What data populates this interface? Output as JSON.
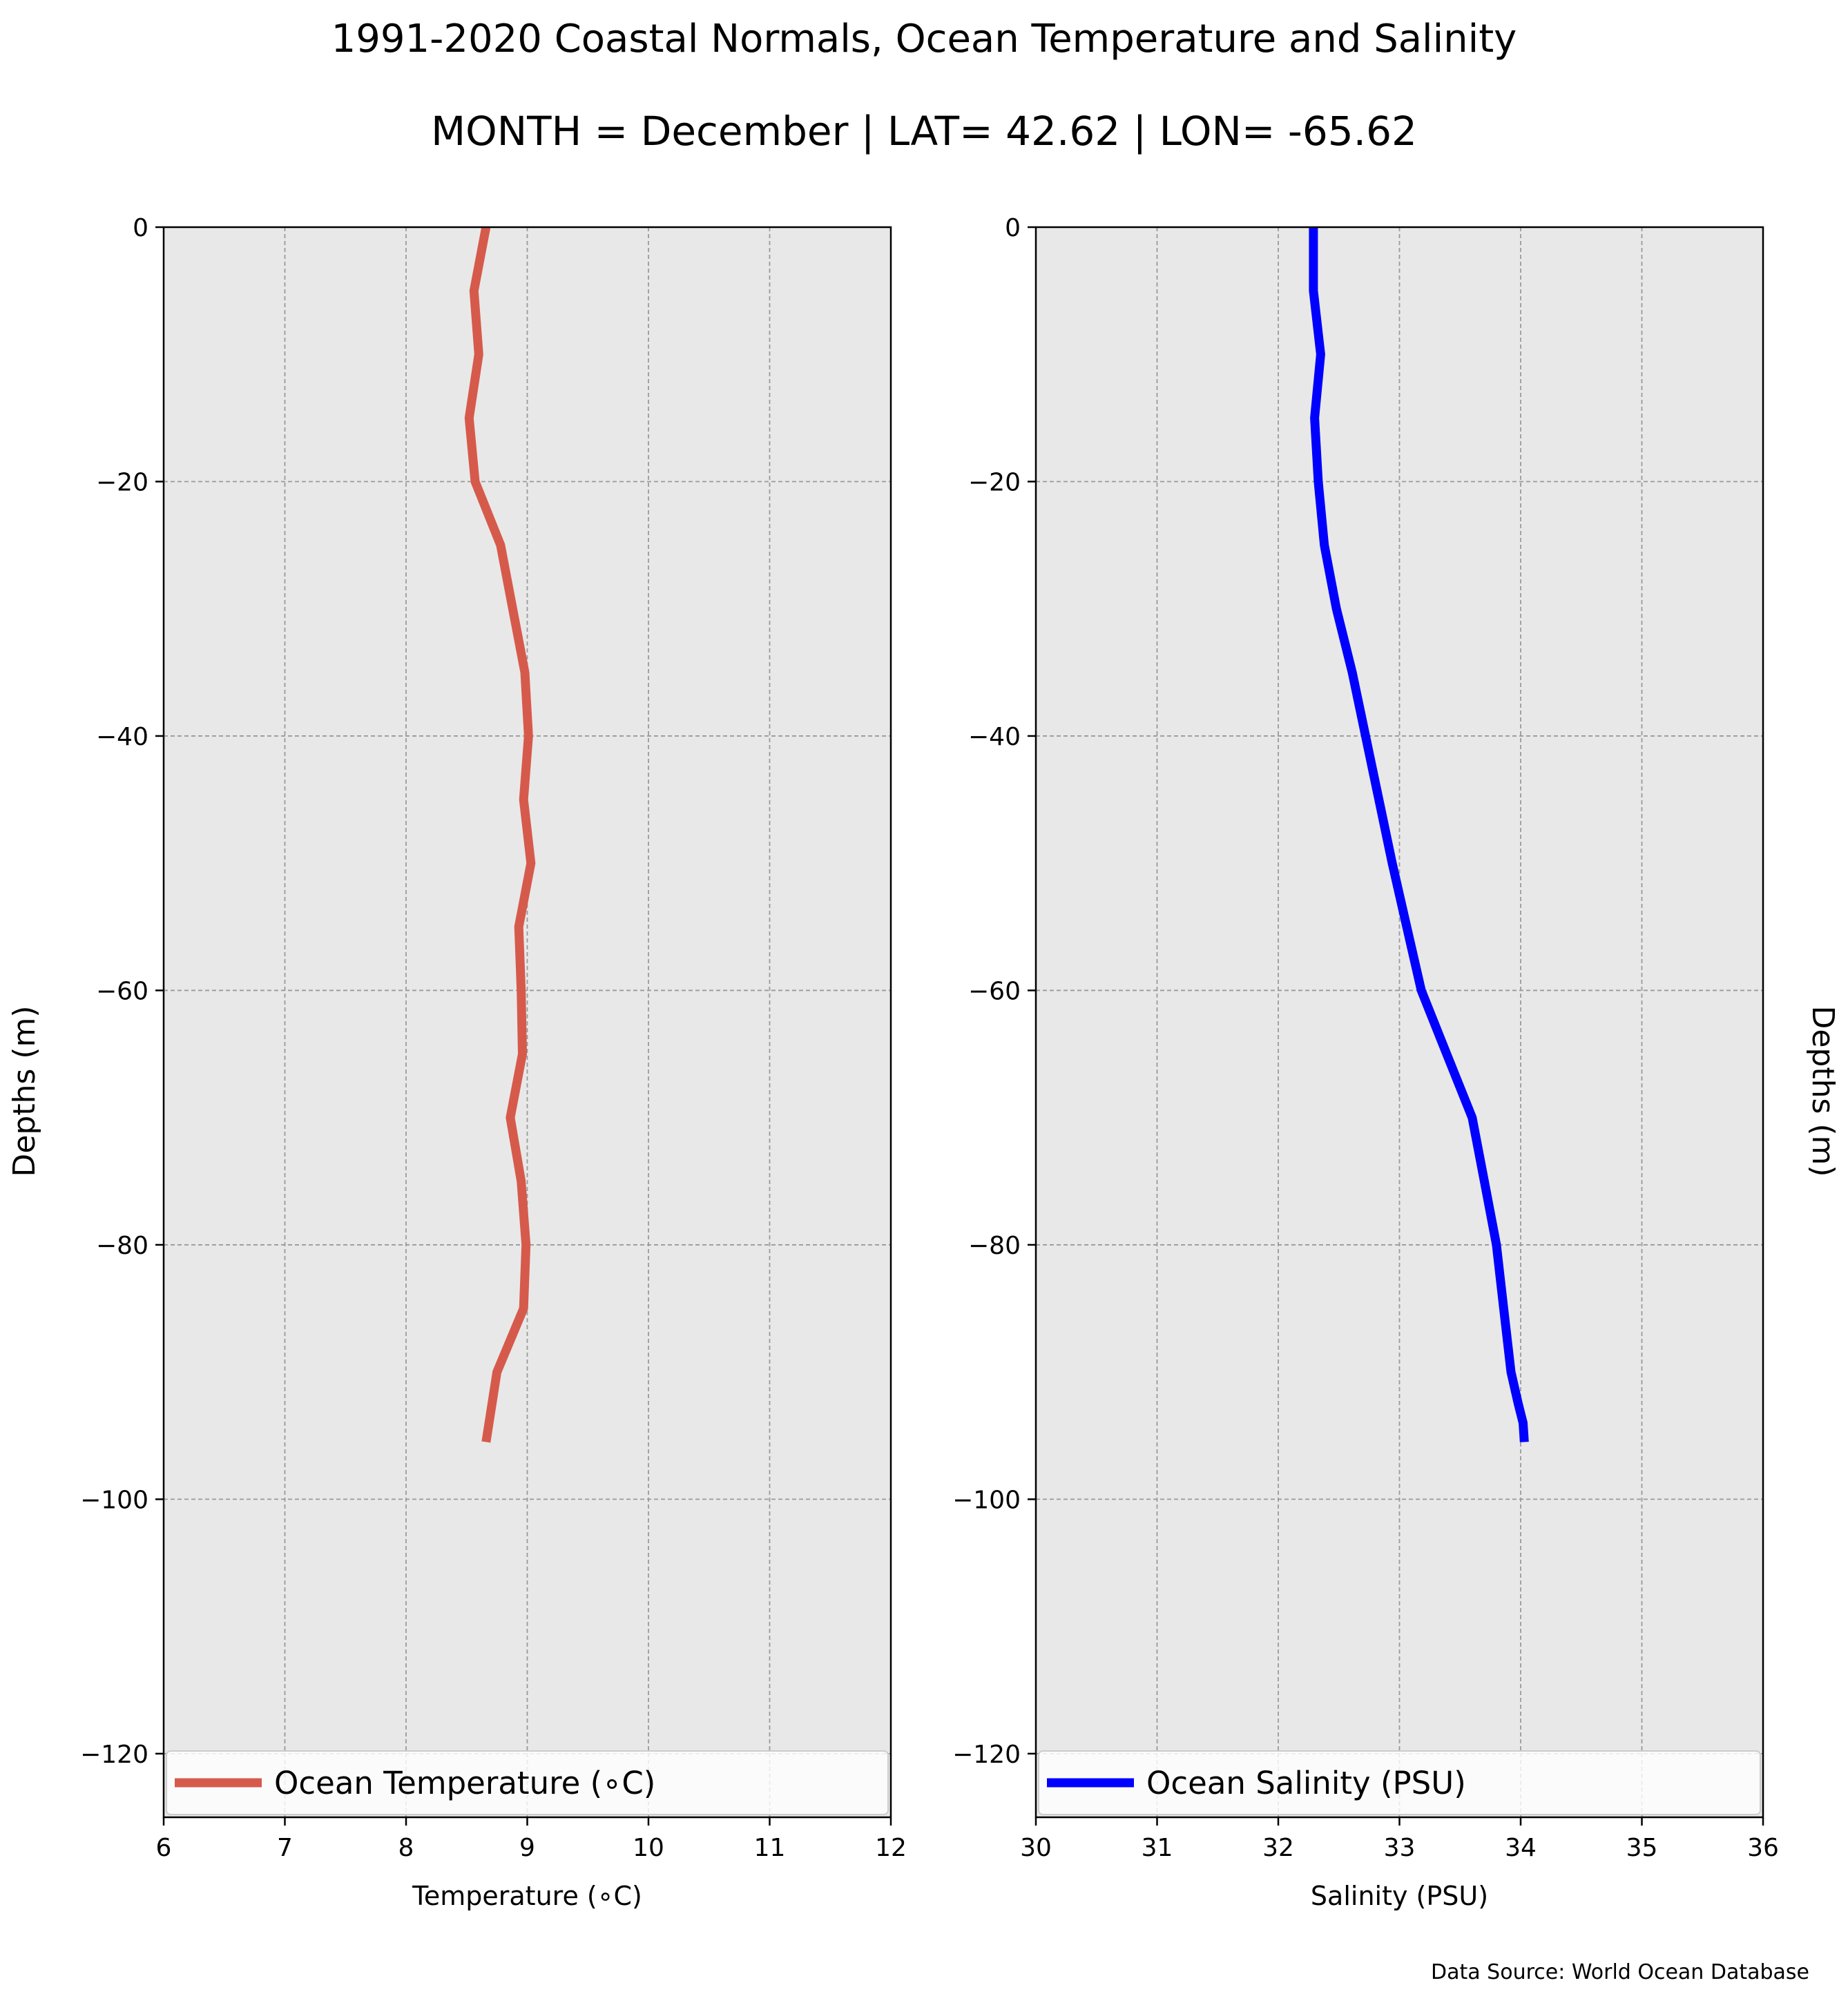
{
  "title": "1991-2020 Coastal Normals, Ocean Temperature and Salinity",
  "subtitle": "MONTH = December | LAT= 42.62 | LON= -65.62",
  "source_note": "Data Source: World Ocean Database",
  "colors": {
    "temperature": "#d65a4b",
    "salinity": "#0000ff",
    "plot_background": "#e8e8e8",
    "grid": "#9a9a9a"
  },
  "chart_data": [
    {
      "type": "line",
      "title": "",
      "xlabel": "Temperature ($^\\circ$C)",
      "xlabel_display": "Temperature (∘C)",
      "ylabel": "Depths (m)",
      "ylabel_side": "left",
      "xlim": [
        6,
        12
      ],
      "ylim": [
        -125,
        0
      ],
      "xticks": [
        "6",
        "7",
        "8",
        "9",
        "10",
        "11",
        "12"
      ],
      "yticks": [
        "0",
        "−20",
        "−40",
        "−60",
        "−80",
        "−100",
        "−120"
      ],
      "grid": true,
      "legend_placement": "lower-center",
      "series": [
        {
          "name": "Ocean Temperature ($^\\circ$C)",
          "name_display": "Ocean Temperature (∘C)",
          "color": "#d65a4b",
          "x": [
            8.66,
            8.56,
            8.6,
            8.52,
            8.57,
            8.78,
            8.88,
            8.98,
            9.01,
            8.97,
            9.03,
            8.93,
            8.95,
            8.96,
            8.86,
            8.95,
            8.99,
            8.97,
            8.75,
            8.66
          ],
          "y": [
            0,
            -5,
            -10,
            -15,
            -20,
            -25,
            -30,
            -35,
            -40,
            -45,
            -50,
            -55,
            -60,
            -65,
            -70,
            -75,
            -80,
            -85,
            -90,
            -95.5
          ]
        }
      ]
    },
    {
      "type": "line",
      "title": "",
      "xlabel": "Salinity (PSU)",
      "ylabel": "Depths (m)",
      "ylabel_side": "right",
      "xlim": [
        30,
        36
      ],
      "ylim": [
        -125,
        0
      ],
      "xticks": [
        "30",
        "31",
        "32",
        "33",
        "34",
        "35",
        "36"
      ],
      "yticks": [
        "0",
        "−20",
        "−40",
        "−60",
        "−80",
        "−100",
        "−120"
      ],
      "grid": true,
      "legend_placement": "lower-center",
      "series": [
        {
          "name": "Ocean Salinity (PSU)",
          "color": "#0000ff",
          "x": [
            32.29,
            32.29,
            32.35,
            32.3,
            32.33,
            32.38,
            32.48,
            32.61,
            32.72,
            32.83,
            32.94,
            33.06,
            33.18,
            33.39,
            33.6,
            33.7,
            33.8,
            33.86,
            33.92,
            33.98,
            34.02,
            34.03
          ],
          "y": [
            0,
            -5,
            -10,
            -15,
            -20,
            -25,
            -30,
            -35,
            -40,
            -45,
            -50,
            -55,
            -60,
            -65,
            -70,
            -75,
            -80,
            -85,
            -90,
            -92.5,
            -94,
            -95.5
          ]
        }
      ]
    }
  ]
}
